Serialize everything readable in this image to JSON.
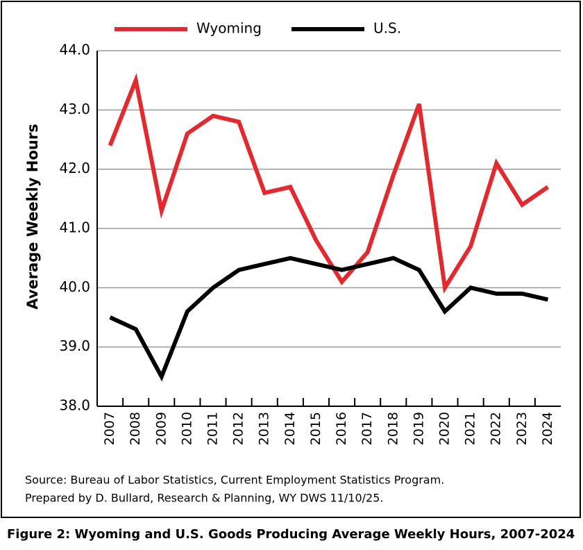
{
  "chart_data": {
    "type": "line",
    "y_label": "Average Weekly Hours",
    "caption": "Figure 2: Wyoming and U.S. Goods Producing Average Weekly Hours, 2007-2024",
    "source_lines": [
      "Source: Bureau of Labor Statistics, Current Employment Statistics Program.",
      "Prepared by D. Bullard, Research & Planning, WY DWS 11/10/25."
    ],
    "categories": [
      "2007",
      "2008",
      "2009",
      "2010",
      "2011",
      "2012",
      "2013",
      "2014",
      "2015",
      "2016",
      "2017",
      "2018",
      "2019",
      "2020",
      "2021",
      "2022",
      "2023",
      "2024"
    ],
    "series": [
      {
        "name": "Wyoming",
        "color": "#e8262b",
        "values": [
          42.4,
          43.5,
          41.3,
          42.6,
          42.9,
          42.8,
          41.6,
          41.7,
          40.8,
          40.1,
          40.6,
          41.9,
          43.1,
          40.0,
          40.7,
          42.1,
          41.4,
          41.7
        ]
      },
      {
        "name": "U.S.",
        "color": "#000000",
        "values": [
          39.5,
          39.3,
          38.5,
          39.6,
          40.0,
          40.3,
          40.4,
          40.5,
          40.4,
          40.3,
          40.4,
          40.5,
          40.3,
          39.6,
          40.0,
          39.9,
          39.9,
          39.8
        ]
      }
    ],
    "ylim": [
      38,
      44
    ],
    "yticks": [
      {
        "value": 38,
        "label": "38.0"
      },
      {
        "value": 39,
        "label": "39.0"
      },
      {
        "value": 40,
        "label": "40.0"
      },
      {
        "value": 41,
        "label": "41.0"
      },
      {
        "value": 42,
        "label": "42.0"
      },
      {
        "value": 43,
        "label": "43.0"
      },
      {
        "value": 44,
        "label": "44.0"
      }
    ],
    "grid": true
  }
}
